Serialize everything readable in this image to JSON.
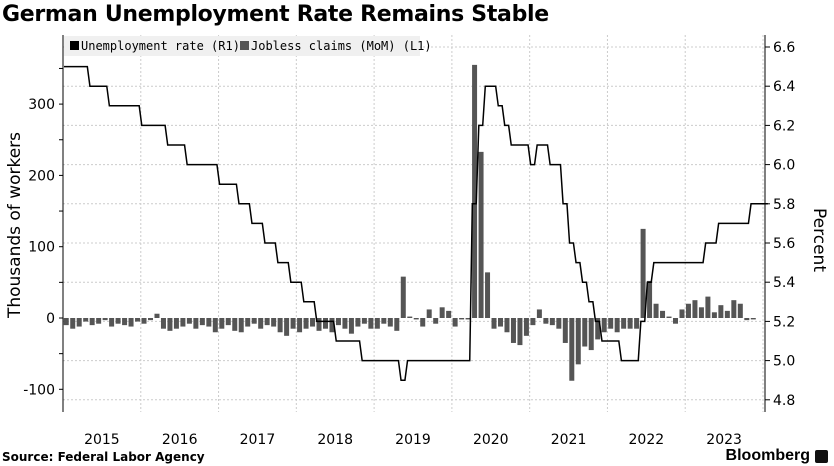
{
  "title": "German Unemployment Rate Remains Stable",
  "source": "Source: Federal Labor Agency",
  "brand": "Bloomberg",
  "chart_data": {
    "type": "bar+line",
    "title": "German Unemployment Rate Remains Stable",
    "x_start": "2015-01",
    "frequency": "monthly",
    "x_tick_labels": [
      "2015",
      "2016",
      "2017",
      "2018",
      "2019",
      "2020",
      "2021",
      "2022",
      "2023"
    ],
    "left_axis": {
      "label": "Thousands of workers",
      "ticks": [
        -100,
        0,
        100,
        200,
        300
      ],
      "range": [
        -130,
        400
      ]
    },
    "right_axis": {
      "label": "Percent",
      "ticks": [
        "4.8",
        "5.0",
        "5.2",
        "5.4",
        "5.6",
        "5.8",
        "6.0",
        "6.2",
        "6.4",
        "6.6"
      ],
      "range": [
        4.72,
        6.66
      ]
    },
    "legend": [
      "Unemployment rate (R1)",
      "Jobless claims (MoM) (L1)"
    ],
    "legend_placement": "top-left",
    "colors": {
      "rate": "#000000",
      "claims": "#555555"
    },
    "series": [
      {
        "name": "Unemployment rate (R1)",
        "axis": "right",
        "type": "line",
        "values": [
          6.5,
          6.5,
          6.5,
          6.5,
          6.4,
          6.4,
          6.4,
          6.3,
          6.3,
          6.3,
          6.3,
          6.3,
          6.2,
          6.2,
          6.2,
          6.2,
          6.1,
          6.1,
          6.1,
          6.0,
          6.0,
          6.0,
          6.0,
          6.0,
          5.9,
          5.9,
          5.9,
          5.8,
          5.8,
          5.7,
          5.7,
          5.6,
          5.6,
          5.5,
          5.5,
          5.4,
          5.4,
          5.3,
          5.3,
          5.2,
          5.2,
          5.2,
          5.1,
          5.1,
          5.1,
          5.1,
          5.0,
          5.0,
          5.0,
          5.0,
          5.0,
          5.0,
          4.9,
          5.0,
          5.0,
          5.0,
          5.0,
          5.0,
          5.0,
          5.0,
          5.0,
          5.0,
          5.0,
          5.8,
          6.2,
          6.4,
          6.4,
          6.3,
          6.2,
          6.1,
          6.1,
          6.1,
          6.0,
          6.1,
          6.1,
          6.0,
          6.0,
          5.8,
          5.6,
          5.5,
          5.4,
          5.3,
          5.2,
          5.1,
          5.1,
          5.1,
          5.0,
          5.0,
          5.0,
          5.2,
          5.4,
          5.5,
          5.5,
          5.5,
          5.5,
          5.5,
          5.5,
          5.5,
          5.5,
          5.6,
          5.6,
          5.7,
          5.7,
          5.7,
          5.7,
          5.7,
          5.8,
          5.8,
          5.8
        ]
      },
      {
        "name": "Jobless claims (MoM) (L1)",
        "axis": "left",
        "type": "bar",
        "values": [
          -10,
          -15,
          -12,
          -5,
          -10,
          -8,
          -3,
          -12,
          -8,
          -10,
          -12,
          -5,
          -8,
          -3,
          6,
          -15,
          -18,
          -15,
          -12,
          -8,
          -15,
          -10,
          -12,
          -20,
          -15,
          -10,
          -18,
          -20,
          -12,
          -8,
          -15,
          -10,
          -12,
          -20,
          -25,
          -15,
          -20,
          -15,
          -12,
          -18,
          -15,
          -20,
          -10,
          -15,
          -22,
          -12,
          -8,
          -15,
          -15,
          -8,
          -12,
          -18,
          58,
          2,
          -2,
          -12,
          12,
          -8,
          15,
          10,
          -12,
          -2,
          -2,
          355,
          233,
          64,
          -15,
          -12,
          -20,
          -35,
          -38,
          -25,
          -10,
          12,
          -8,
          -10,
          -15,
          -35,
          -88,
          -65,
          -40,
          -45,
          -30,
          -20,
          -15,
          -20,
          -15,
          -15,
          -15,
          125,
          52,
          20,
          10,
          2,
          -8,
          12,
          20,
          25,
          15,
          30,
          8,
          18,
          10,
          25,
          20,
          -3,
          -2
        ]
      }
    ]
  }
}
